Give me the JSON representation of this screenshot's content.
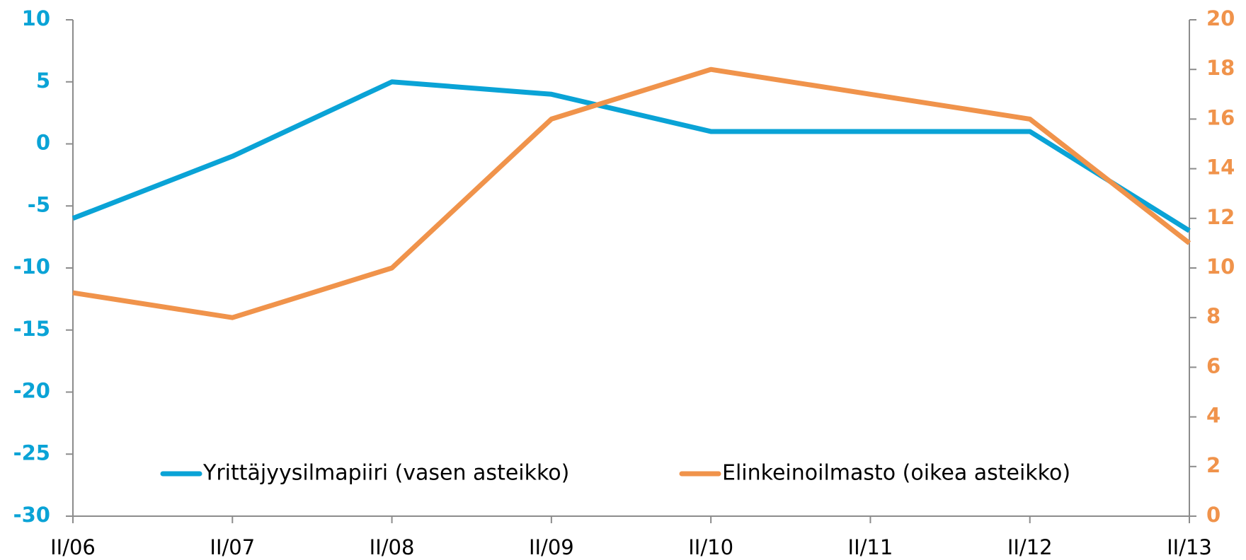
{
  "chart_data": {
    "type": "line",
    "categories": [
      "II/06",
      "II/07",
      "II/08",
      "II/09",
      "II/10",
      "II/11",
      "II/12",
      "II/13"
    ],
    "series": [
      {
        "name": "Yrittäjyysilmapiiri (vasen asteikko)",
        "color": "#0aa3d6",
        "values": [
          -6,
          -1,
          5,
          4,
          1,
          1,
          1,
          -7
        ]
      },
      {
        "name": "Elinkeinoilmasto (oikea asteikko)",
        "color": "#f0934b",
        "axis": "y2",
        "values": [
          9,
          8,
          10,
          16,
          18,
          17,
          16,
          11
        ]
      }
    ],
    "ylim": [
      -30,
      10
    ],
    "yticks": [
      -30,
      -25,
      -20,
      -15,
      -10,
      -5,
      0,
      5,
      10
    ],
    "y2lim": [
      0,
      20
    ],
    "y2ticks": [
      0,
      2,
      4,
      6,
      8,
      10,
      12,
      14,
      16,
      18,
      20
    ],
    "legend": "bottom"
  }
}
